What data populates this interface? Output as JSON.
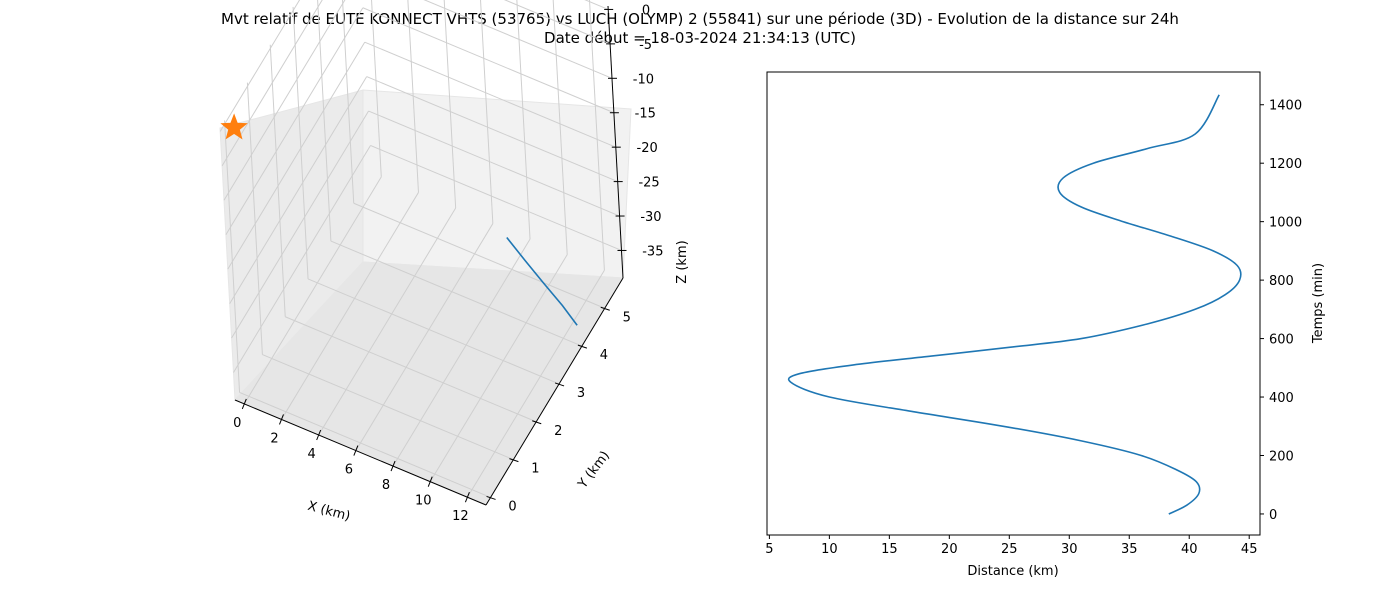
{
  "title_line1": "Mvt relatif de EUTE KONNECT VHTS (53765) vs LUCH (OLYMP) 2 (55841) sur une période (3D) - Evolution de la distance sur 24h",
  "title_line2": "Date début = 18-03-2024 21:34:13 (UTC)",
  "colors": {
    "series": "#1f77b4",
    "marker": "#ff7f0e",
    "pane": "#f2f2f2",
    "grid": "#d0d0d0"
  },
  "chart_data": [
    {
      "type": "line3d",
      "xlabel": "X (km)",
      "ylabel": "Y (km)",
      "zlabel": "Z (km)",
      "xlim": [
        -0.5,
        13
      ],
      "ylim": [
        -0.2,
        5.8
      ],
      "zlim": [
        -39,
        0.5
      ],
      "xticks": [
        0,
        2,
        4,
        6,
        8,
        10,
        12
      ],
      "yticks": [
        0,
        1,
        2,
        3,
        4,
        5
      ],
      "zticks": [
        0,
        -5,
        -10,
        -15,
        -20,
        -25,
        -30,
        -35
      ],
      "grid": true,
      "series": [
        {
          "x": [
            7.0,
            8.5,
            10.0,
            11.5,
            12.8
          ],
          "y": [
            5.6,
            5.2,
            4.8,
            4.4,
            4.0
          ],
          "z": [
            -38.8,
            -38.3,
            -37.7,
            -37.0,
            -36.2
          ]
        }
      ],
      "marker": {
        "shape": "star",
        "x": 0,
        "y": 0,
        "z": 0
      }
    },
    {
      "type": "line",
      "xlabel": "Distance (km)",
      "ylabel": "Temps (min)",
      "ylabel_side": "right",
      "xlim": [
        4.8,
        45.9
      ],
      "ylim": [
        -72,
        1512
      ],
      "xticks": [
        5,
        10,
        15,
        20,
        25,
        30,
        35,
        40,
        45
      ],
      "yticks": [
        0,
        200,
        400,
        600,
        800,
        1000,
        1200,
        1400
      ],
      "grid": false,
      "series": [
        {
          "distance": [
            38.3,
            39.8,
            40.8,
            40.6,
            39.0,
            36.0,
            31.0,
            24.5,
            17.0,
            10.0,
            6.8,
            7.5,
            12.0,
            18.5,
            25.0,
            31.0,
            36.5,
            40.5,
            43.0,
            44.2,
            44.0,
            42.0,
            38.5,
            34.5,
            31.0,
            29.2,
            29.5,
            32.0,
            36.5,
            40.5,
            42.5
          ],
          "time": [
            0,
            30,
            70,
            110,
            150,
            200,
            250,
            300,
            350,
            400,
            450,
            480,
            510,
            540,
            570,
            600,
            650,
            700,
            750,
            800,
            850,
            900,
            950,
            1000,
            1050,
            1100,
            1150,
            1200,
            1250,
            1300,
            1434
          ]
        }
      ]
    }
  ]
}
